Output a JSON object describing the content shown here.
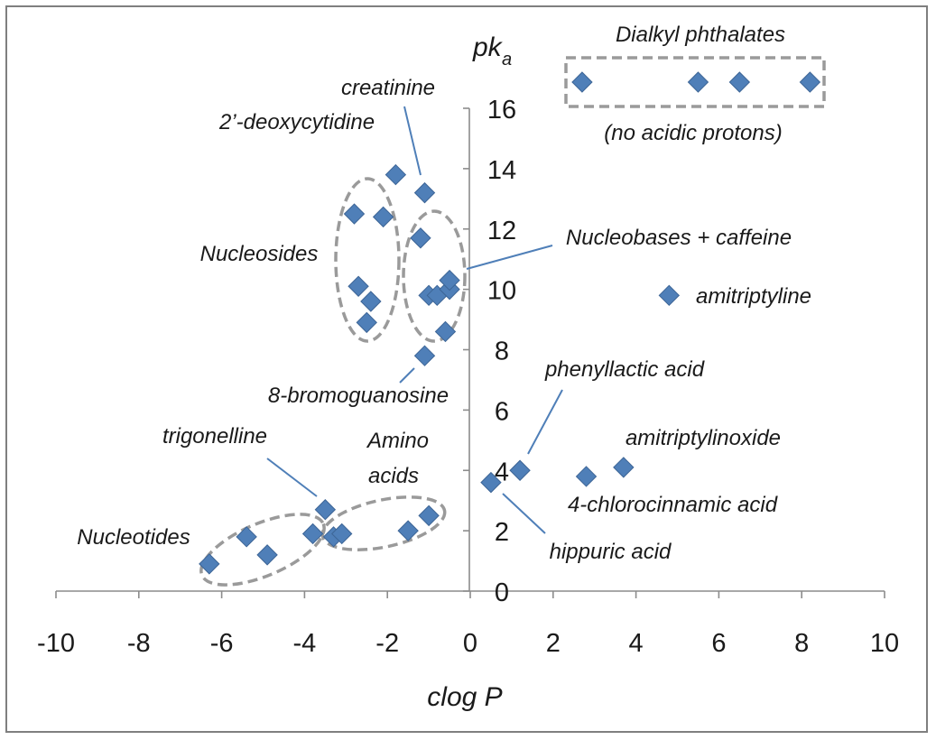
{
  "chart_data": {
    "type": "scatter",
    "xlabel": "clog P",
    "ylabel_main": "pk",
    "ylabel_sub": "a",
    "xlim": [
      -10,
      10
    ],
    "ylim": [
      0,
      16
    ],
    "xticks": [
      "-10",
      "-8",
      "-6",
      "-4",
      "-2",
      "0",
      "2",
      "4",
      "6",
      "8",
      "10"
    ],
    "yticks": [
      "0",
      "2",
      "4",
      "6",
      "8",
      "10",
      "12",
      "14",
      "16"
    ],
    "grid": false,
    "marker_color": "#4f7fb8",
    "points": [
      {
        "x": -6.3,
        "y": 0.9
      },
      {
        "x": -5.4,
        "y": 1.8
      },
      {
        "x": -4.9,
        "y": 1.2
      },
      {
        "x": -3.8,
        "y": 1.9
      },
      {
        "x": -3.5,
        "y": 2.7
      },
      {
        "x": -3.3,
        "y": 1.8
      },
      {
        "x": -3.1,
        "y": 1.9
      },
      {
        "x": -1.5,
        "y": 2.0
      },
      {
        "x": -1.0,
        "y": 2.5
      },
      {
        "x": 0.5,
        "y": 3.6
      },
      {
        "x": 1.2,
        "y": 4.0
      },
      {
        "x": 2.8,
        "y": 3.8
      },
      {
        "x": 3.7,
        "y": 4.1
      },
      {
        "x": -1.1,
        "y": 7.8
      },
      {
        "x": -0.6,
        "y": 8.6
      },
      {
        "x": -1.0,
        "y": 9.8
      },
      {
        "x": -0.8,
        "y": 9.8
      },
      {
        "x": -0.5,
        "y": 10.0
      },
      {
        "x": -0.5,
        "y": 10.3
      },
      {
        "x": -1.2,
        "y": 11.7
      },
      {
        "x": -1.1,
        "y": 13.2
      },
      {
        "x": -2.5,
        "y": 8.9
      },
      {
        "x": -2.4,
        "y": 9.6
      },
      {
        "x": -2.7,
        "y": 10.1
      },
      {
        "x": -2.8,
        "y": 12.5
      },
      {
        "x": -2.1,
        "y": 12.4
      },
      {
        "x": -1.8,
        "y": 13.8
      },
      {
        "x": 4.8,
        "y": 9.8
      }
    ],
    "phthalates_x": [
      2.7,
      5.5,
      6.5,
      8.2
    ],
    "annotations": {
      "dialkyl": "Dialkyl phthalates",
      "no_acidic": "(no acidic protons)",
      "creatinine": "creatinine",
      "deoxycytidine": "2’-deoxycytidine",
      "nucleosides": "Nucleosides",
      "nucleobases": "Nucleobases + caffeine",
      "amitriptyline": "amitriptyline",
      "bromoguanosine": "8-bromoguanosine",
      "phenyllactic": "phenyllactic acid",
      "amitriptylinoxide": "amitriptylinoxide",
      "chlorocinnamic": "4-chlorocinnamic acid",
      "hippuric": "hippuric acid",
      "trigonelline": "trigonelline",
      "amino_line1": "Amino",
      "amino_line2": "acids",
      "nucleotides": "Nucleotides"
    }
  }
}
